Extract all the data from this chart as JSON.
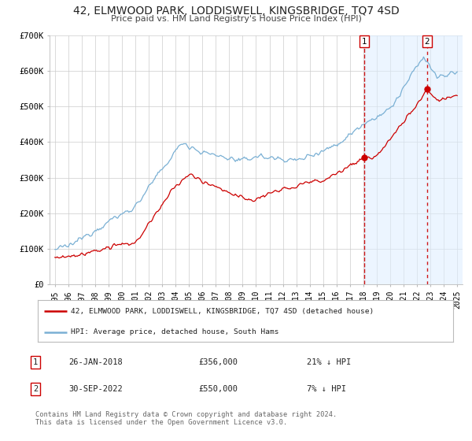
{
  "title": "42, ELMWOOD PARK, LODDISWELL, KINGSBRIDGE, TQ7 4SD",
  "subtitle": "Price paid vs. HM Land Registry's House Price Index (HPI)",
  "legend_line1": "42, ELMWOOD PARK, LODDISWELL, KINGSBRIDGE, TQ7 4SD (detached house)",
  "legend_line2": "HPI: Average price, detached house, South Hams",
  "transaction1_date": "26-JAN-2018",
  "transaction1_price": "£356,000",
  "transaction1_hpi": "21% ↓ HPI",
  "transaction2_date": "30-SEP-2022",
  "transaction2_price": "£550,000",
  "transaction2_hpi": "7% ↓ HPI",
  "transaction1_x": 2018.07,
  "transaction2_x": 2022.75,
  "transaction1_y_red": 356000,
  "transaction2_y_red": 550000,
  "vline1_x": 2018.07,
  "vline2_x": 2022.75,
  "red_color": "#cc0000",
  "blue_color": "#7ab0d4",
  "blue_fill_color": "#ddeeff",
  "vline_color": "#cc0000",
  "background_color": "#ffffff",
  "grid_color": "#cccccc",
  "title_color": "#333333",
  "footer_text": "Contains HM Land Registry data © Crown copyright and database right 2024.\nThis data is licensed under the Open Government Licence v3.0.",
  "ylim": [
    0,
    700000
  ],
  "xlim_start": 1994.6,
  "xlim_end": 2025.4,
  "yticks": [
    0,
    100000,
    200000,
    300000,
    400000,
    500000,
    600000,
    700000
  ],
  "ytick_labels": [
    "£0",
    "£100K",
    "£200K",
    "£300K",
    "£400K",
    "£500K",
    "£600K",
    "£700K"
  ],
  "xtick_years": [
    1995,
    1996,
    1997,
    1998,
    1999,
    2000,
    2001,
    2002,
    2003,
    2004,
    2005,
    2006,
    2007,
    2008,
    2009,
    2010,
    2011,
    2012,
    2013,
    2014,
    2015,
    2016,
    2017,
    2018,
    2019,
    2020,
    2021,
    2022,
    2023,
    2024,
    2025
  ]
}
